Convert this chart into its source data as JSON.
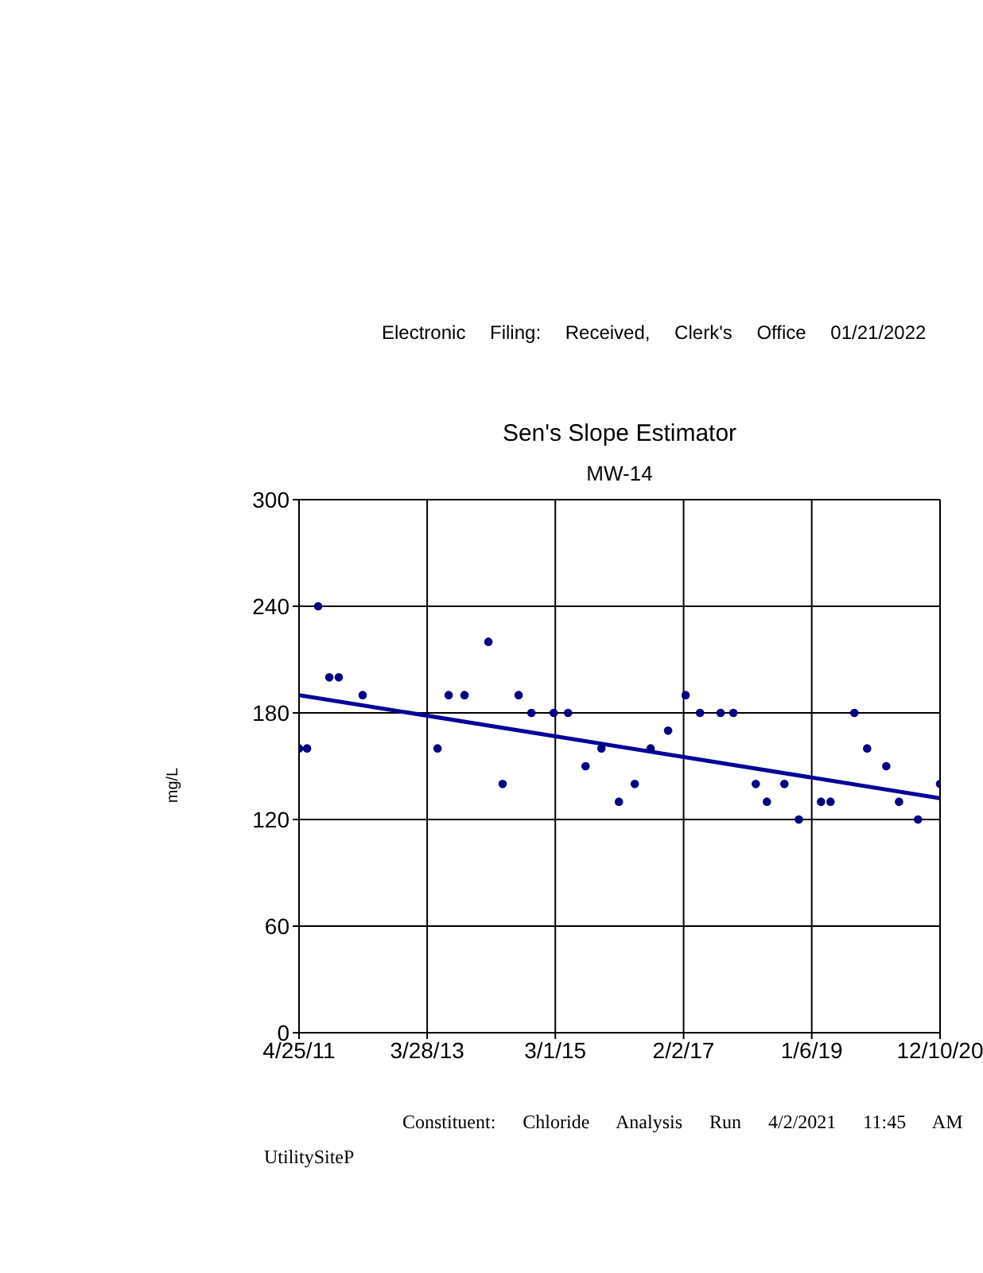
{
  "chart_data": {
    "type": "scatter",
    "title": "Sen's Slope Estimator",
    "subtitle": "MW-14",
    "ylabel": "mg/L",
    "annotations": [
      "Electronic Filing: Received, Clerk's Office 01/21/2022",
      "Constituent: Chloride Analysis Run 4/2/2021 11:45 AM",
      "UtilitySiteP"
    ],
    "xlim": [
      "2011-04-25",
      "2020-12-10"
    ],
    "xticks": [
      {
        "value": "2011-04-25",
        "label": "4/25/11"
      },
      {
        "value": "2013-03-28",
        "label": "3/28/13"
      },
      {
        "value": "2015-03-01",
        "label": "3/1/15"
      },
      {
        "value": "2017-02-02",
        "label": "2/2/17"
      },
      {
        "value": "2019-01-06",
        "label": "1/6/19"
      },
      {
        "value": "2020-12-10",
        "label": "12/10/20"
      }
    ],
    "ylim": [
      0,
      300
    ],
    "yticks": [
      0,
      60,
      120,
      180,
      240,
      300
    ],
    "grid": true,
    "series": [
      {
        "marker": "circle",
        "color": "#000080",
        "x": [
          "2011-04-25",
          "2011-06-08",
          "2011-08-08",
          "2011-10-08",
          "2011-11-29",
          "2012-04-08",
          "2013-05-24",
          "2013-07-24",
          "2013-10-19",
          "2014-02-27",
          "2014-05-16",
          "2014-08-12",
          "2014-10-21",
          "2015-02-20",
          "2015-05-10",
          "2015-08-14",
          "2015-11-09",
          "2016-02-13",
          "2016-05-10",
          "2016-08-05",
          "2016-11-09",
          "2017-02-13",
          "2017-05-03",
          "2017-08-24",
          "2017-11-02",
          "2018-03-05",
          "2018-05-05",
          "2018-08-09",
          "2018-10-27",
          "2019-02-26",
          "2019-04-19",
          "2019-08-28",
          "2019-11-06",
          "2020-02-19",
          "2020-04-29",
          "2020-08-11",
          "2020-12-10"
        ],
        "values": [
          160,
          160,
          240,
          200,
          200,
          190,
          160,
          190,
          190,
          220,
          140,
          190,
          180,
          180,
          180,
          150,
          160,
          130,
          140,
          160,
          170,
          190,
          180,
          180,
          180,
          140,
          130,
          140,
          120,
          130,
          130,
          180,
          160,
          150,
          130,
          120,
          140
        ]
      },
      {
        "type": "line",
        "marker": "none",
        "color": "#000099",
        "x": [
          "2011-04-25",
          "2020-12-10"
        ],
        "values": [
          190,
          132
        ]
      }
    ]
  }
}
